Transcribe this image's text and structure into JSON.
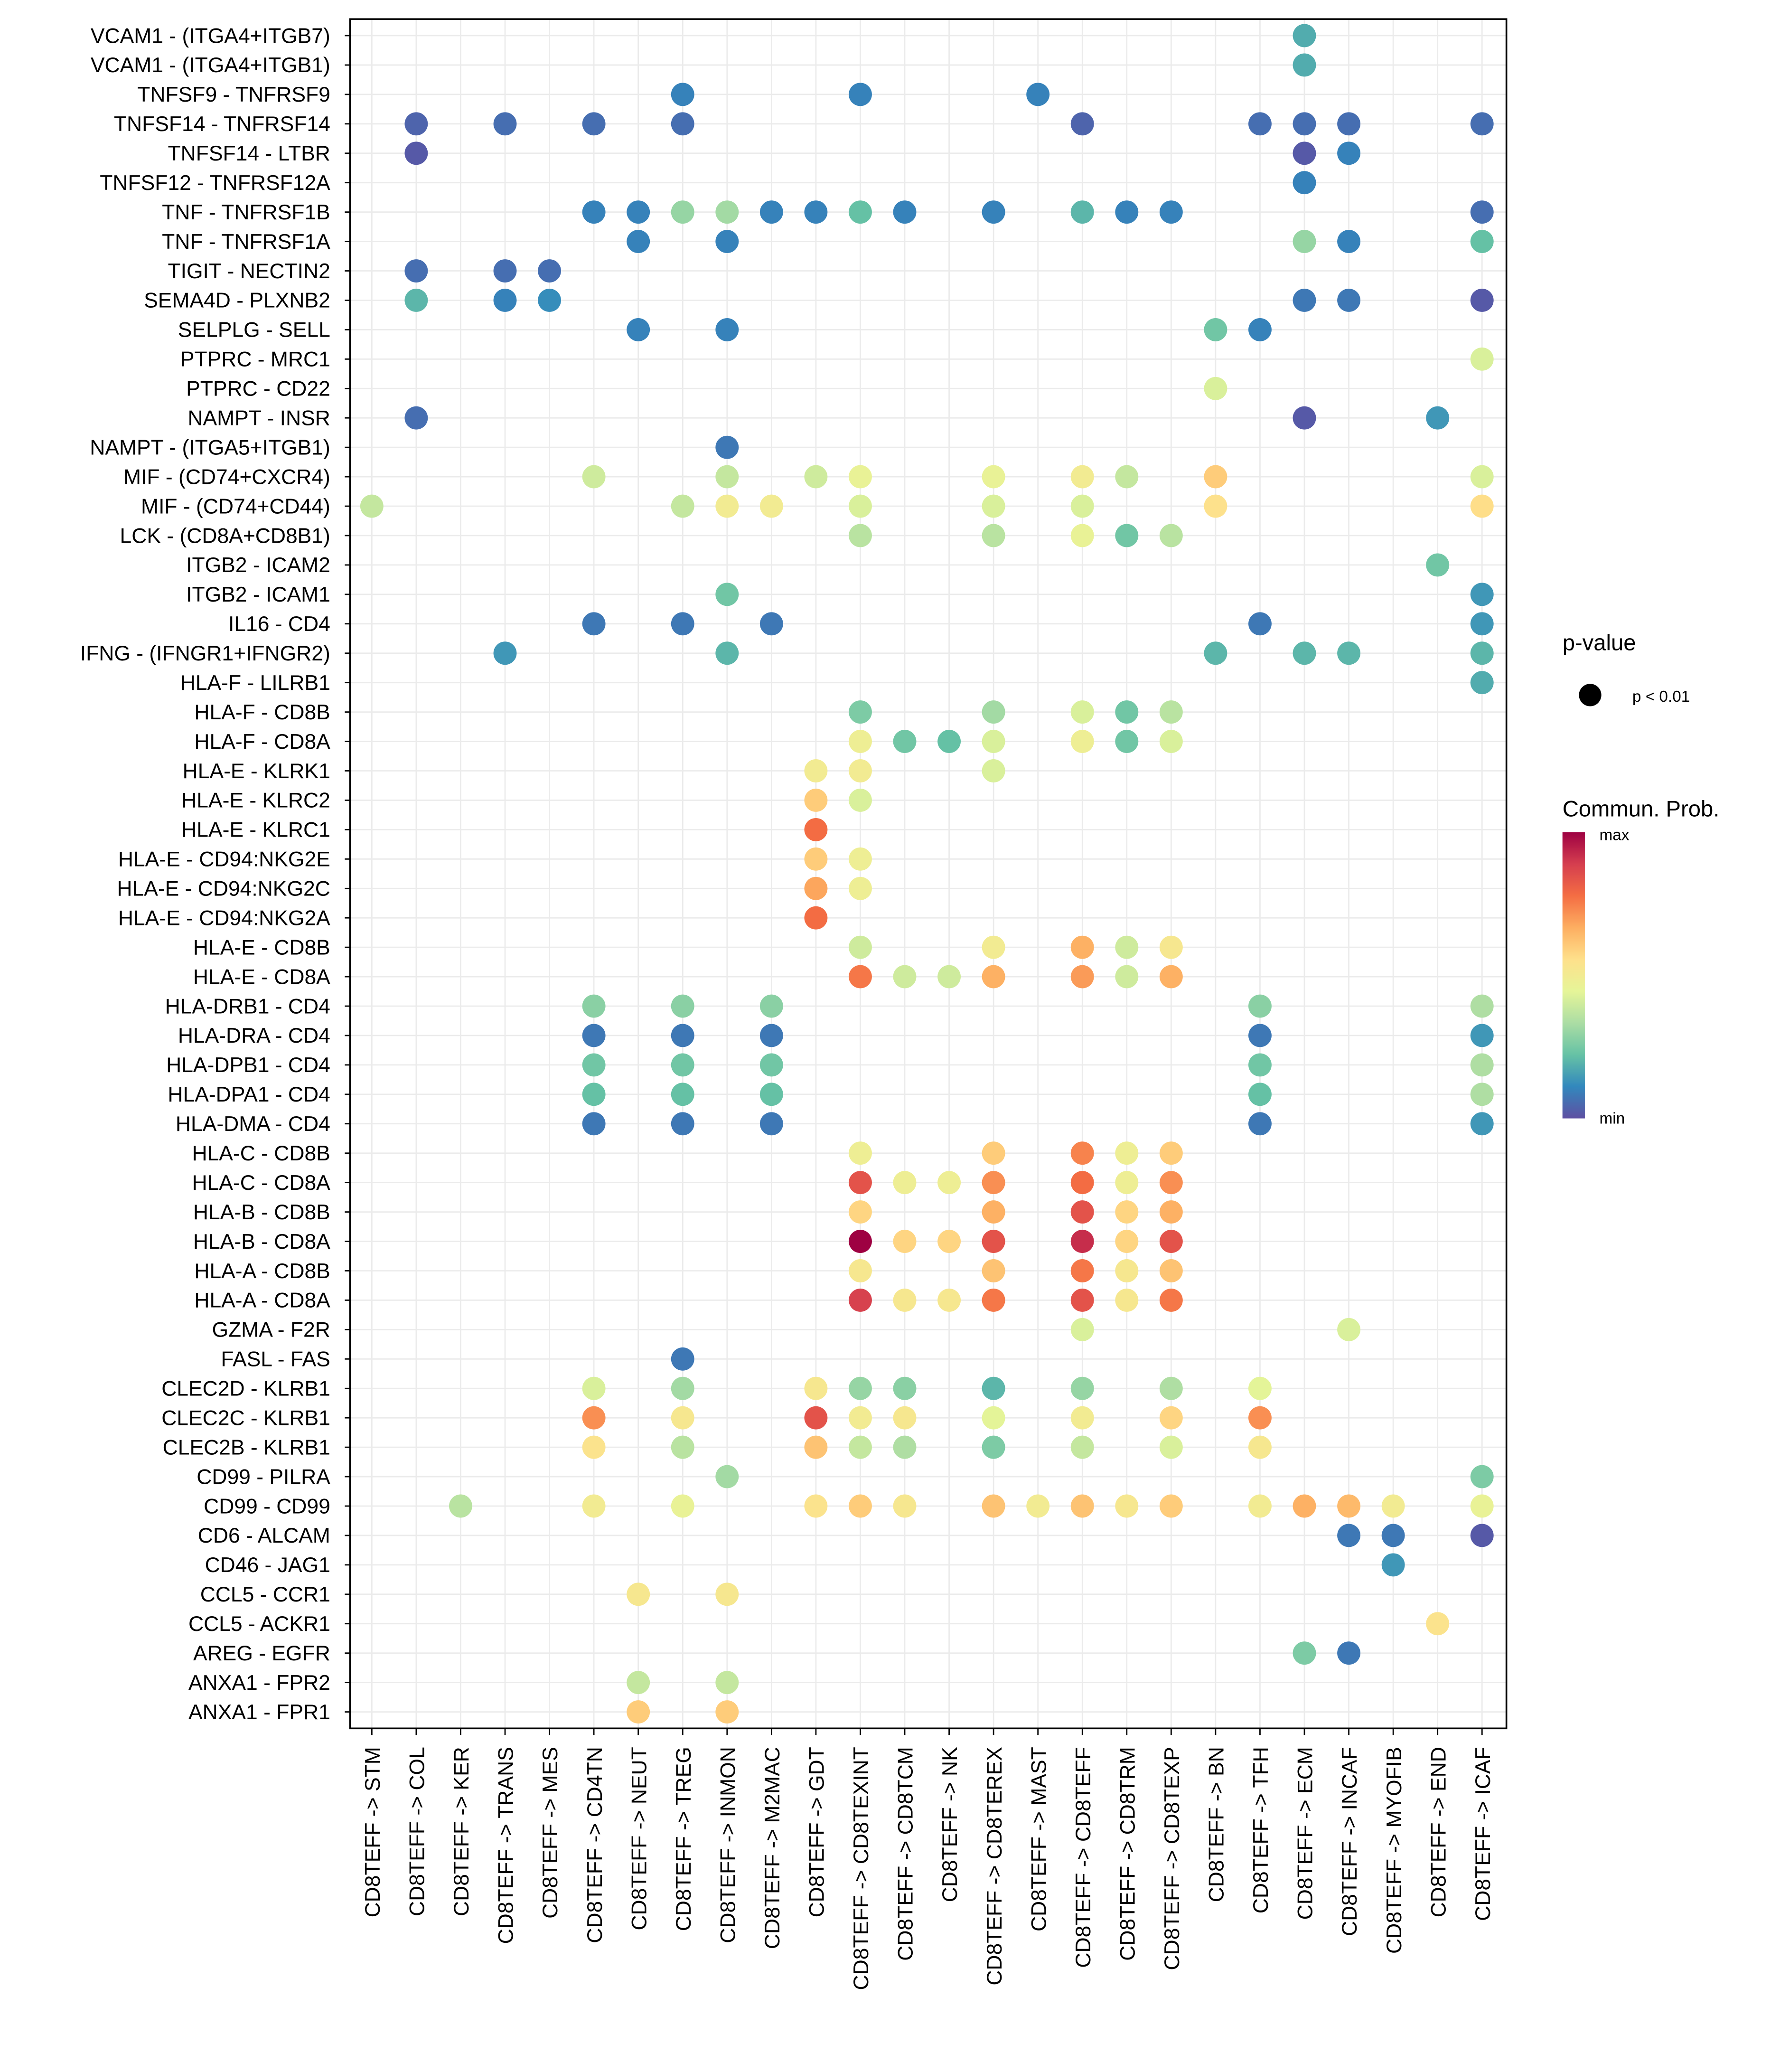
{
  "chart_data": {
    "type": "scatter",
    "subtype": "dot-plot",
    "title": "",
    "xlabel": "",
    "ylabel": "",
    "grid": true,
    "x_categories": [
      "CD8TEFF -> STM",
      "CD8TEFF -> COL",
      "CD8TEFF -> KER",
      "CD8TEFF -> TRANS",
      "CD8TEFF -> MES",
      "CD8TEFF -> CD4TN",
      "CD8TEFF -> NEUT",
      "CD8TEFF -> TREG",
      "CD8TEFF -> INMON",
      "CD8TEFF -> M2MAC",
      "CD8TEFF -> GDT",
      "CD8TEFF -> CD8TEXINT",
      "CD8TEFF -> CD8TCM",
      "CD8TEFF -> NK",
      "CD8TEFF -> CD8TEREX",
      "CD8TEFF -> MAST",
      "CD8TEFF -> CD8TEFF",
      "CD8TEFF -> CD8TRM",
      "CD8TEFF -> CD8TEXP",
      "CD8TEFF -> BN",
      "CD8TEFF -> TFH",
      "CD8TEFF -> ECM",
      "CD8TEFF -> INCAF",
      "CD8TEFF -> MYOFIB",
      "CD8TEFF -> END",
      "CD8TEFF -> ICAF"
    ],
    "y_categories": [
      "VCAM1 - (ITGA4+ITGB7)",
      "VCAM1 - (ITGA4+ITGB1)",
      "TNFSF9 - TNFRSF9",
      "TNFSF14 - TNFRSF14",
      "TNFSF14 - LTBR",
      "TNFSF12 - TNFRSF12A",
      "TNF - TNFRSF1B",
      "TNF - TNFRSF1A",
      "TIGIT - NECTIN2",
      "SEMA4D - PLXNB2",
      "SELPLG - SELL",
      "PTPRC - MRC1",
      "PTPRC - CD22",
      "NAMPT - INSR",
      "NAMPT - (ITGA5+ITGB1)",
      "MIF - (CD74+CXCR4)",
      "MIF - (CD74+CD44)",
      "LCK - (CD8A+CD8B1)",
      "ITGB2 - ICAM2",
      "ITGB2 - ICAM1",
      "IL16 - CD4",
      "IFNG - (IFNGR1+IFNGR2)",
      "HLA-F - LILRB1",
      "HLA-F - CD8B",
      "HLA-F - CD8A",
      "HLA-E - KLRK1",
      "HLA-E - KLRC2",
      "HLA-E - KLRC1",
      "HLA-E - CD94:NKG2E",
      "HLA-E - CD94:NKG2C",
      "HLA-E - CD94:NKG2A",
      "HLA-E - CD8B",
      "HLA-E - CD8A",
      "HLA-DRB1 - CD4",
      "HLA-DRA - CD4",
      "HLA-DPB1 - CD4",
      "HLA-DPA1 - CD4",
      "HLA-DMA - CD4",
      "HLA-C - CD8B",
      "HLA-C - CD8A",
      "HLA-B - CD8B",
      "HLA-B - CD8A",
      "HLA-A - CD8B",
      "HLA-A - CD8A",
      "GZMA - F2R",
      "FASL - FAS",
      "CLEC2D - KLRB1",
      "CLEC2C - KLRB1",
      "CLEC2B - KLRB1",
      "CD99 - PILRA",
      "CD99 - CD99",
      "CD6 - ALCAM",
      "CD46 - JAG1",
      "CCL5 - CCR1",
      "CCL5 - ACKR1",
      "AREG - EGFR",
      "ANXA1 - FPR2",
      "ANXA1 - FPR1"
    ],
    "value_scale": "Commun. Prob. normalized 0 (min) to 1 (max)",
    "points": [
      [
        0,
        21,
        0.18
      ],
      [
        1,
        21,
        0.18
      ],
      [
        2,
        7,
        0.1
      ],
      [
        2,
        11,
        0.1
      ],
      [
        2,
        15,
        0.1
      ],
      [
        3,
        1,
        0.04
      ],
      [
        3,
        3,
        0.06
      ],
      [
        3,
        5,
        0.06
      ],
      [
        3,
        7,
        0.06
      ],
      [
        3,
        16,
        0.04
      ],
      [
        3,
        20,
        0.06
      ],
      [
        3,
        21,
        0.06
      ],
      [
        3,
        22,
        0.06
      ],
      [
        3,
        25,
        0.06
      ],
      [
        4,
        1,
        0.02
      ],
      [
        4,
        21,
        0.02
      ],
      [
        4,
        22,
        0.1
      ],
      [
        5,
        21,
        0.1
      ],
      [
        6,
        5,
        0.1
      ],
      [
        6,
        6,
        0.1
      ],
      [
        6,
        7,
        0.3
      ],
      [
        6,
        8,
        0.32
      ],
      [
        6,
        9,
        0.1
      ],
      [
        6,
        10,
        0.1
      ],
      [
        6,
        11,
        0.22
      ],
      [
        6,
        12,
        0.1
      ],
      [
        6,
        14,
        0.1
      ],
      [
        6,
        16,
        0.2
      ],
      [
        6,
        17,
        0.1
      ],
      [
        6,
        18,
        0.1
      ],
      [
        6,
        25,
        0.06
      ],
      [
        7,
        6,
        0.1
      ],
      [
        7,
        8,
        0.1
      ],
      [
        7,
        21,
        0.3
      ],
      [
        7,
        22,
        0.1
      ],
      [
        7,
        25,
        0.22
      ],
      [
        8,
        1,
        0.06
      ],
      [
        8,
        3,
        0.06
      ],
      [
        8,
        4,
        0.06
      ],
      [
        9,
        1,
        0.2
      ],
      [
        9,
        3,
        0.1
      ],
      [
        9,
        4,
        0.12
      ],
      [
        9,
        21,
        0.08
      ],
      [
        9,
        22,
        0.08
      ],
      [
        9,
        25,
        0.02
      ],
      [
        10,
        6,
        0.1
      ],
      [
        10,
        8,
        0.1
      ],
      [
        10,
        19,
        0.24
      ],
      [
        10,
        20,
        0.1
      ],
      [
        11,
        25,
        0.42
      ],
      [
        12,
        19,
        0.42
      ],
      [
        13,
        1,
        0.06
      ],
      [
        13,
        21,
        0.02
      ],
      [
        13,
        24,
        0.14
      ],
      [
        14,
        8,
        0.08
      ],
      [
        15,
        5,
        0.4
      ],
      [
        15,
        8,
        0.38
      ],
      [
        15,
        10,
        0.4
      ],
      [
        15,
        11,
        0.46
      ],
      [
        15,
        14,
        0.46
      ],
      [
        15,
        16,
        0.5
      ],
      [
        15,
        17,
        0.38
      ],
      [
        15,
        19,
        0.6
      ],
      [
        15,
        25,
        0.42
      ],
      [
        16,
        0,
        0.38
      ],
      [
        16,
        7,
        0.38
      ],
      [
        16,
        8,
        0.5
      ],
      [
        16,
        9,
        0.5
      ],
      [
        16,
        11,
        0.42
      ],
      [
        16,
        14,
        0.42
      ],
      [
        16,
        16,
        0.42
      ],
      [
        16,
        19,
        0.55
      ],
      [
        16,
        25,
        0.56
      ],
      [
        17,
        11,
        0.36
      ],
      [
        17,
        14,
        0.36
      ],
      [
        17,
        16,
        0.46
      ],
      [
        17,
        17,
        0.24
      ],
      [
        17,
        18,
        0.36
      ],
      [
        18,
        24,
        0.24
      ],
      [
        19,
        8,
        0.24
      ],
      [
        19,
        25,
        0.14
      ],
      [
        20,
        5,
        0.08
      ],
      [
        20,
        7,
        0.08
      ],
      [
        20,
        9,
        0.08
      ],
      [
        20,
        20,
        0.08
      ],
      [
        20,
        25,
        0.14
      ],
      [
        21,
        3,
        0.14
      ],
      [
        21,
        8,
        0.2
      ],
      [
        21,
        19,
        0.2
      ],
      [
        21,
        21,
        0.2
      ],
      [
        21,
        22,
        0.2
      ],
      [
        21,
        25,
        0.2
      ],
      [
        22,
        25,
        0.18
      ],
      [
        23,
        11,
        0.26
      ],
      [
        23,
        14,
        0.32
      ],
      [
        23,
        16,
        0.42
      ],
      [
        23,
        17,
        0.24
      ],
      [
        23,
        18,
        0.36
      ],
      [
        24,
        11,
        0.48
      ],
      [
        24,
        12,
        0.24
      ],
      [
        24,
        13,
        0.22
      ],
      [
        24,
        14,
        0.42
      ],
      [
        24,
        16,
        0.48
      ],
      [
        24,
        17,
        0.24
      ],
      [
        24,
        18,
        0.42
      ],
      [
        25,
        10,
        0.5
      ],
      [
        25,
        11,
        0.5
      ],
      [
        25,
        14,
        0.42
      ],
      [
        26,
        10,
        0.6
      ],
      [
        26,
        11,
        0.42
      ],
      [
        27,
        10,
        0.78
      ],
      [
        28,
        10,
        0.6
      ],
      [
        28,
        11,
        0.48
      ],
      [
        29,
        10,
        0.68
      ],
      [
        29,
        11,
        0.48
      ],
      [
        30,
        10,
        0.78
      ],
      [
        31,
        11,
        0.4
      ],
      [
        31,
        14,
        0.5
      ],
      [
        31,
        16,
        0.66
      ],
      [
        31,
        17,
        0.4
      ],
      [
        31,
        18,
        0.52
      ],
      [
        32,
        11,
        0.76
      ],
      [
        32,
        12,
        0.4
      ],
      [
        32,
        13,
        0.4
      ],
      [
        32,
        14,
        0.66
      ],
      [
        32,
        16,
        0.7
      ],
      [
        32,
        17,
        0.4
      ],
      [
        32,
        18,
        0.66
      ],
      [
        33,
        5,
        0.28
      ],
      [
        33,
        7,
        0.28
      ],
      [
        33,
        9,
        0.28
      ],
      [
        33,
        20,
        0.28
      ],
      [
        33,
        25,
        0.34
      ],
      [
        34,
        5,
        0.08
      ],
      [
        34,
        7,
        0.08
      ],
      [
        34,
        9,
        0.08
      ],
      [
        34,
        20,
        0.08
      ],
      [
        34,
        25,
        0.14
      ],
      [
        35,
        5,
        0.24
      ],
      [
        35,
        7,
        0.24
      ],
      [
        35,
        9,
        0.24
      ],
      [
        35,
        20,
        0.24
      ],
      [
        35,
        25,
        0.34
      ],
      [
        36,
        5,
        0.22
      ],
      [
        36,
        7,
        0.22
      ],
      [
        36,
        9,
        0.22
      ],
      [
        36,
        20,
        0.22
      ],
      [
        36,
        25,
        0.34
      ],
      [
        37,
        5,
        0.08
      ],
      [
        37,
        7,
        0.08
      ],
      [
        37,
        9,
        0.08
      ],
      [
        37,
        20,
        0.08
      ],
      [
        37,
        25,
        0.14
      ],
      [
        38,
        11,
        0.48
      ],
      [
        38,
        14,
        0.6
      ],
      [
        38,
        16,
        0.74
      ],
      [
        38,
        17,
        0.48
      ],
      [
        38,
        18,
        0.6
      ],
      [
        39,
        11,
        0.84
      ],
      [
        39,
        12,
        0.48
      ],
      [
        39,
        13,
        0.48
      ],
      [
        39,
        14,
        0.72
      ],
      [
        39,
        16,
        0.78
      ],
      [
        39,
        17,
        0.48
      ],
      [
        39,
        18,
        0.72
      ],
      [
        40,
        11,
        0.58
      ],
      [
        40,
        14,
        0.66
      ],
      [
        40,
        16,
        0.84
      ],
      [
        40,
        17,
        0.58
      ],
      [
        40,
        18,
        0.66
      ],
      [
        41,
        11,
        1.0
      ],
      [
        41,
        12,
        0.58
      ],
      [
        41,
        13,
        0.58
      ],
      [
        41,
        14,
        0.84
      ],
      [
        41,
        16,
        0.92
      ],
      [
        41,
        17,
        0.58
      ],
      [
        41,
        18,
        0.84
      ],
      [
        42,
        11,
        0.52
      ],
      [
        42,
        14,
        0.62
      ],
      [
        42,
        16,
        0.76
      ],
      [
        42,
        17,
        0.52
      ],
      [
        42,
        18,
        0.62
      ],
      [
        43,
        11,
        0.88
      ],
      [
        43,
        12,
        0.52
      ],
      [
        43,
        13,
        0.52
      ],
      [
        43,
        14,
        0.76
      ],
      [
        43,
        16,
        0.84
      ],
      [
        43,
        17,
        0.52
      ],
      [
        43,
        18,
        0.76
      ],
      [
        44,
        16,
        0.42
      ],
      [
        44,
        22,
        0.42
      ],
      [
        45,
        7,
        0.08
      ],
      [
        46,
        5,
        0.42
      ],
      [
        46,
        7,
        0.32
      ],
      [
        46,
        10,
        0.52
      ],
      [
        46,
        11,
        0.3
      ],
      [
        46,
        12,
        0.28
      ],
      [
        46,
        14,
        0.2
      ],
      [
        46,
        16,
        0.3
      ],
      [
        46,
        18,
        0.34
      ],
      [
        46,
        20,
        0.44
      ],
      [
        47,
        5,
        0.72
      ],
      [
        47,
        7,
        0.52
      ],
      [
        47,
        10,
        0.84
      ],
      [
        47,
        11,
        0.5
      ],
      [
        47,
        12,
        0.52
      ],
      [
        47,
        14,
        0.44
      ],
      [
        47,
        16,
        0.5
      ],
      [
        47,
        18,
        0.58
      ],
      [
        47,
        20,
        0.72
      ],
      [
        48,
        5,
        0.54
      ],
      [
        48,
        7,
        0.36
      ],
      [
        48,
        10,
        0.62
      ],
      [
        48,
        11,
        0.38
      ],
      [
        48,
        12,
        0.34
      ],
      [
        48,
        14,
        0.26
      ],
      [
        48,
        16,
        0.38
      ],
      [
        48,
        18,
        0.42
      ],
      [
        48,
        20,
        0.52
      ],
      [
        49,
        8,
        0.32
      ],
      [
        49,
        25,
        0.26
      ],
      [
        50,
        2,
        0.36
      ],
      [
        50,
        5,
        0.5
      ],
      [
        50,
        7,
        0.46
      ],
      [
        50,
        10,
        0.54
      ],
      [
        50,
        11,
        0.6
      ],
      [
        50,
        12,
        0.52
      ],
      [
        50,
        14,
        0.62
      ],
      [
        50,
        15,
        0.5
      ],
      [
        50,
        16,
        0.62
      ],
      [
        50,
        17,
        0.52
      ],
      [
        50,
        18,
        0.6
      ],
      [
        50,
        20,
        0.5
      ],
      [
        50,
        21,
        0.66
      ],
      [
        50,
        22,
        0.64
      ],
      [
        50,
        23,
        0.5
      ],
      [
        50,
        25,
        0.46
      ],
      [
        51,
        22,
        0.08
      ],
      [
        51,
        23,
        0.08
      ],
      [
        51,
        25,
        0.02
      ],
      [
        52,
        23,
        0.14
      ],
      [
        53,
        6,
        0.52
      ],
      [
        53,
        8,
        0.52
      ],
      [
        54,
        24,
        0.54
      ],
      [
        55,
        21,
        0.26
      ],
      [
        55,
        22,
        0.08
      ],
      [
        56,
        6,
        0.38
      ],
      [
        56,
        8,
        0.38
      ],
      [
        57,
        6,
        0.6
      ],
      [
        57,
        8,
        0.6
      ]
    ],
    "legend": {
      "size": {
        "title": "p-value",
        "entries": [
          "p < 0.01"
        ]
      },
      "color": {
        "title": "Commun. Prob.",
        "max_label": "max",
        "min_label": "min",
        "palette": [
          "#5E4FA2",
          "#3288BD",
          "#66C2A5",
          "#ABDDA4",
          "#E6F598",
          "#FEE08B",
          "#FDAE61",
          "#F46D43",
          "#D53E4F",
          "#9E0142"
        ]
      },
      "placement": "right"
    }
  }
}
